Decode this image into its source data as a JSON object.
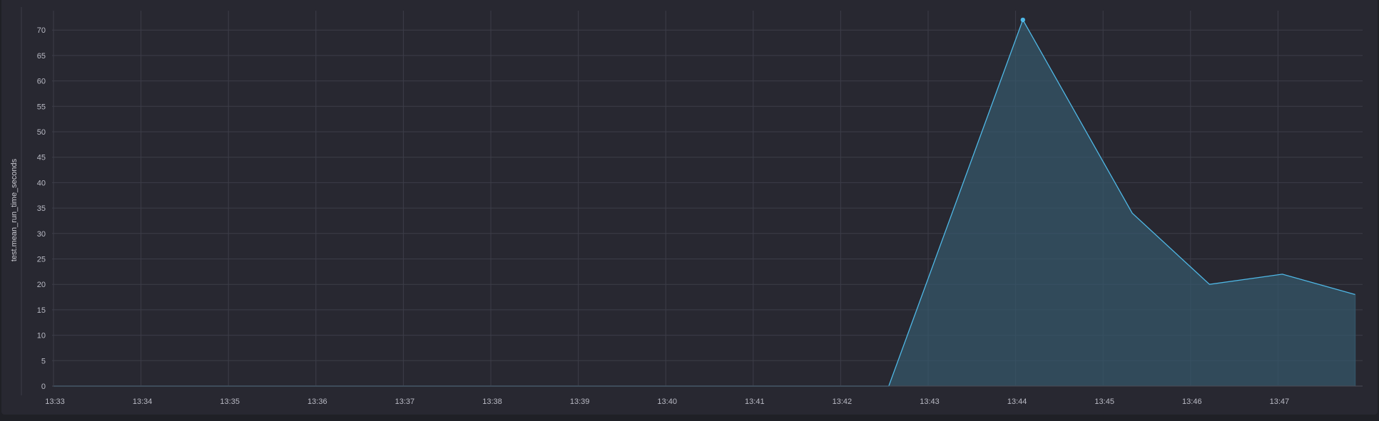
{
  "chart_data": {
    "type": "area",
    "ylabel": "test.mean_run_time_seconds",
    "xlabel": "",
    "title": "",
    "x_ticks": [
      "13:33",
      "13:34",
      "13:35",
      "13:36",
      "13:37",
      "13:38",
      "13:39",
      "13:40",
      "13:41",
      "13:42",
      "13:43",
      "13:44",
      "13:45",
      "13:46",
      "13:47"
    ],
    "y_ticks": [
      0,
      5,
      10,
      15,
      20,
      25,
      30,
      35,
      40,
      45,
      50,
      55,
      60,
      65,
      70
    ],
    "ylim": [
      0,
      72
    ],
    "xlim": [
      "13:33",
      "13:48"
    ],
    "grid": true,
    "series": [
      {
        "color": "#4fb8e6",
        "points": [
          {
            "x": "13:33",
            "y": 0
          },
          {
            "x": "13:42:33",
            "y": 0
          },
          {
            "x": "13:44:05",
            "y": 72
          },
          {
            "x": "13:45:20",
            "y": 34
          },
          {
            "x": "13:46:13",
            "y": 20
          },
          {
            "x": "13:47:03",
            "y": 22
          },
          {
            "x": "13:47:53",
            "y": 18
          }
        ],
        "highlight": {
          "x": "13:44:05",
          "y": 72
        }
      }
    ]
  }
}
